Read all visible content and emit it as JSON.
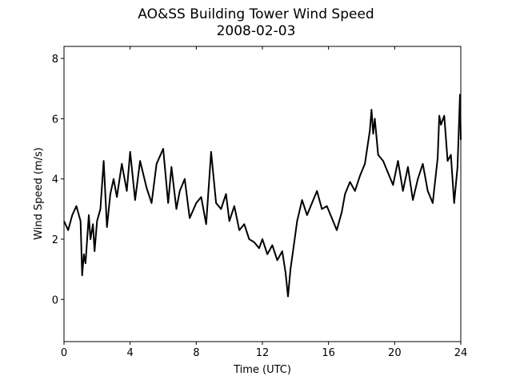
{
  "chart_data": {
    "type": "line",
    "title": "AO&SS Building Tower Wind Speed",
    "subtitle": "2008-02-03",
    "xlabel": "Time (UTC)",
    "ylabel": "Wind Speed (m/s)",
    "xlim": [
      0,
      24
    ],
    "ylim": [
      -1.4,
      8.4
    ],
    "xticks": [
      0,
      4,
      8,
      12,
      16,
      20,
      24
    ],
    "yticks": [
      0,
      2,
      4,
      6,
      8
    ],
    "grid": false,
    "line_color": "#000000",
    "series": [
      {
        "x": [
          0.0,
          0.25,
          0.5,
          0.75,
          1.0,
          1.1,
          1.2,
          1.3,
          1.5,
          1.6,
          1.75,
          1.85,
          2.0,
          2.2,
          2.4,
          2.6,
          2.8,
          3.0,
          3.2,
          3.5,
          3.8,
          4.0,
          4.3,
          4.6,
          5.0,
          5.3,
          5.6,
          6.0,
          6.3,
          6.5,
          6.8,
          7.0,
          7.3,
          7.6,
          8.0,
          8.3,
          8.6,
          8.9,
          9.2,
          9.5,
          9.8,
          10.0,
          10.3,
          10.6,
          10.9,
          11.2,
          11.5,
          11.8,
          12.0,
          12.3,
          12.6,
          12.9,
          13.2,
          13.4,
          13.55,
          13.7,
          13.9,
          14.1,
          14.4,
          14.7,
          15.0,
          15.3,
          15.6,
          15.9,
          16.2,
          16.5,
          16.8,
          17.0,
          17.3,
          17.6,
          17.9,
          18.2,
          18.5,
          18.6,
          18.7,
          18.8,
          19.0,
          19.3,
          19.6,
          19.9,
          20.2,
          20.5,
          20.8,
          21.1,
          21.4,
          21.7,
          22.0,
          22.3,
          22.6,
          22.7,
          22.8,
          23.0,
          23.2,
          23.4,
          23.6,
          23.8,
          23.95,
          24.0
        ],
        "y": [
          2.6,
          2.3,
          2.8,
          3.1,
          2.6,
          0.8,
          1.5,
          1.2,
          2.8,
          2.0,
          2.5,
          1.6,
          2.6,
          3.0,
          4.6,
          2.4,
          3.5,
          4.0,
          3.4,
          4.5,
          3.6,
          4.9,
          3.3,
          4.6,
          3.7,
          3.2,
          4.5,
          5.0,
          3.2,
          4.4,
          3.0,
          3.6,
          4.0,
          2.7,
          3.2,
          3.4,
          2.5,
          4.9,
          3.2,
          3.0,
          3.5,
          2.6,
          3.1,
          2.3,
          2.5,
          2.0,
          1.9,
          1.7,
          2.0,
          1.5,
          1.8,
          1.3,
          1.6,
          0.9,
          0.1,
          1.0,
          1.8,
          2.6,
          3.3,
          2.8,
          3.2,
          3.6,
          3.0,
          3.1,
          2.7,
          2.3,
          2.9,
          3.5,
          3.9,
          3.6,
          4.1,
          4.5,
          5.6,
          6.3,
          5.5,
          6.0,
          4.8,
          4.6,
          4.2,
          3.8,
          4.6,
          3.6,
          4.4,
          3.3,
          4.0,
          4.5,
          3.6,
          3.2,
          4.7,
          6.1,
          5.8,
          6.1,
          4.6,
          4.8,
          3.2,
          4.4,
          6.8,
          5.3
        ]
      }
    ]
  }
}
